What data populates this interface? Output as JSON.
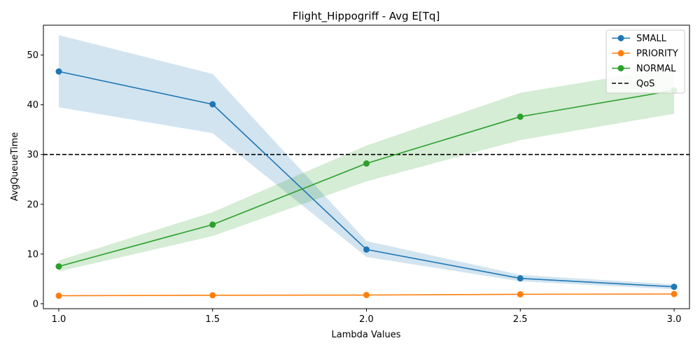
{
  "chart_data": {
    "type": "line",
    "title": "Flight_Hippogriff - Avg E[Tq]",
    "xlabel": "Lambda Values",
    "ylabel": "AvgQueueTime",
    "x": [
      1.0,
      1.5,
      2.0,
      2.5,
      3.0
    ],
    "x_tick_labels": [
      "1.0",
      "1.5",
      "2.0",
      "2.5",
      "3.0"
    ],
    "xlim": [
      0.95,
      3.05
    ],
    "ylim": [
      -1,
      56
    ],
    "y_ticks": [
      0,
      10,
      20,
      30,
      40,
      50
    ],
    "y_tick_labels": [
      "0",
      "10",
      "20",
      "30",
      "40",
      "50"
    ],
    "grid": false,
    "legend_position": "top-right",
    "series": [
      {
        "name": "SMALL",
        "color": "#1f77b4",
        "values": [
          46.7,
          40.1,
          10.9,
          5.1,
          3.4
        ],
        "band_lower": [
          39.5,
          34.3,
          9.4,
          4.5,
          2.9
        ],
        "band_upper": [
          54.0,
          46.2,
          12.6,
          5.8,
          3.9
        ]
      },
      {
        "name": "PRIORITY",
        "color": "#ff7f0e",
        "values": [
          1.6,
          1.7,
          1.75,
          1.9,
          1.95
        ],
        "band_lower": [
          1.5,
          1.6,
          1.65,
          1.8,
          1.85
        ],
        "band_upper": [
          1.7,
          1.8,
          1.85,
          2.0,
          2.05
        ]
      },
      {
        "name": "NORMAL",
        "color": "#2ca02c",
        "values": [
          7.5,
          15.9,
          28.2,
          37.6,
          42.9
        ],
        "band_lower": [
          6.5,
          13.6,
          24.6,
          32.9,
          38.2
        ],
        "band_upper": [
          8.7,
          18.4,
          31.8,
          42.4,
          47.5
        ]
      }
    ],
    "reference_lines": [
      {
        "name": "QoS",
        "y": 30,
        "color": "#000000",
        "style": "dashed"
      }
    ]
  }
}
